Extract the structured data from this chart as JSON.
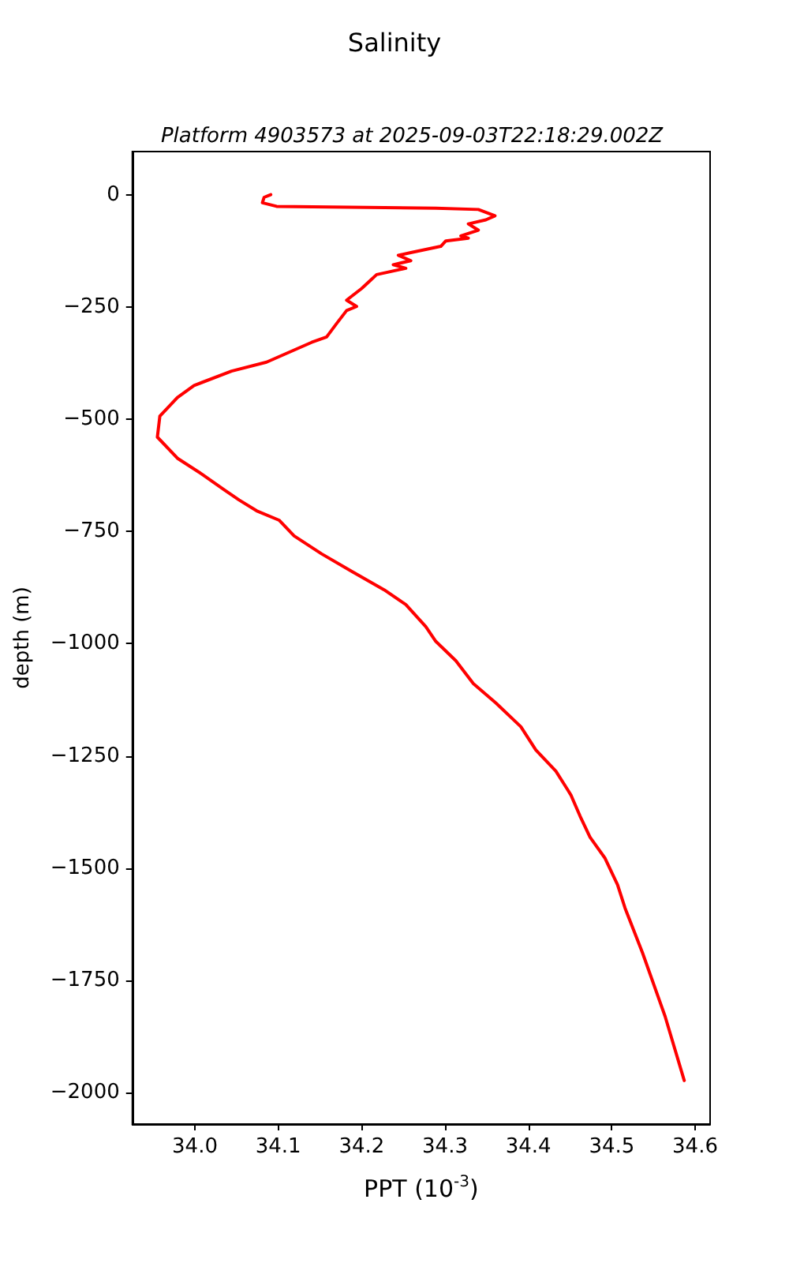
{
  "chart_data": {
    "type": "line",
    "title": "Salinity",
    "subtitle": "Platform 4903573 at 2025-09-03T22:18:29.002Z",
    "xlabel": "PPT (10$^{-3}$)",
    "ylabel": "depth (m)",
    "xlim": [
      33.925,
      34.618
    ],
    "xticks": [
      {
        "value": 34,
        "label": "34.0"
      },
      {
        "value": 34.1,
        "label": "34.1"
      },
      {
        "value": 34.2,
        "label": "34.2"
      },
      {
        "value": 34.3,
        "label": "34.3"
      },
      {
        "value": 34.4,
        "label": "34.4"
      },
      {
        "value": 34.5,
        "label": "34.5"
      },
      {
        "value": 34.6,
        "label": "34.6"
      }
    ],
    "ylim": [
      -2070,
      96
    ],
    "yticks": [
      {
        "value": 0,
        "label": "0"
      },
      {
        "value": -250,
        "label": "−250"
      },
      {
        "value": -500,
        "label": "−500"
      },
      {
        "value": -750,
        "label": "−750"
      },
      {
        "value": -1000,
        "label": "−1000"
      },
      {
        "value": -1250,
        "label": "−1250"
      },
      {
        "value": -1500,
        "label": "−1500"
      },
      {
        "value": -1750,
        "label": "−1750"
      },
      {
        "value": -2000,
        "label": "−2000"
      }
    ],
    "grid": false,
    "marker": "none",
    "line_style": "solid",
    "series": [
      {
        "color": "#ff0000",
        "x": [
          34.091,
          34.083,
          34.081,
          34.098,
          34.289,
          34.34,
          34.36,
          34.349,
          34.328,
          34.34,
          34.319,
          34.328,
          34.301,
          34.295,
          34.259,
          34.244,
          34.259,
          34.238,
          34.253,
          34.218,
          34.211,
          34.2,
          34.182,
          34.194,
          34.182,
          34.17,
          34.158,
          34.14,
          34.086,
          34.044,
          33.999,
          33.979,
          33.958,
          33.955,
          33.979,
          34.008,
          34.035,
          34.053,
          34.074,
          34.101,
          34.119,
          34.152,
          34.188,
          34.227,
          34.253,
          34.277,
          34.289,
          34.313,
          34.334,
          34.361,
          34.391,
          34.409,
          34.433,
          34.447,
          34.451,
          34.462,
          34.474,
          34.492,
          34.507,
          34.516,
          34.537,
          34.564,
          34.587
        ],
        "values": [
          0,
          -6,
          -18,
          -26,
          -30,
          -33,
          -47,
          -56,
          -65,
          -79,
          -92,
          -97,
          -103,
          -115,
          -129,
          -135,
          -147,
          -156,
          -164,
          -178,
          -190,
          -209,
          -235,
          -249,
          -258,
          -287,
          -317,
          -329,
          -373,
          -393,
          -425,
          -452,
          -493,
          -540,
          -587,
          -622,
          -657,
          -680,
          -704,
          -725,
          -760,
          -800,
          -839,
          -880,
          -913,
          -962,
          -995,
          -1038,
          -1089,
          -1132,
          -1185,
          -1237,
          -1284,
          -1325,
          -1337,
          -1384,
          -1431,
          -1478,
          -1537,
          -1589,
          -1689,
          -1830,
          -1973
        ]
      }
    ]
  }
}
